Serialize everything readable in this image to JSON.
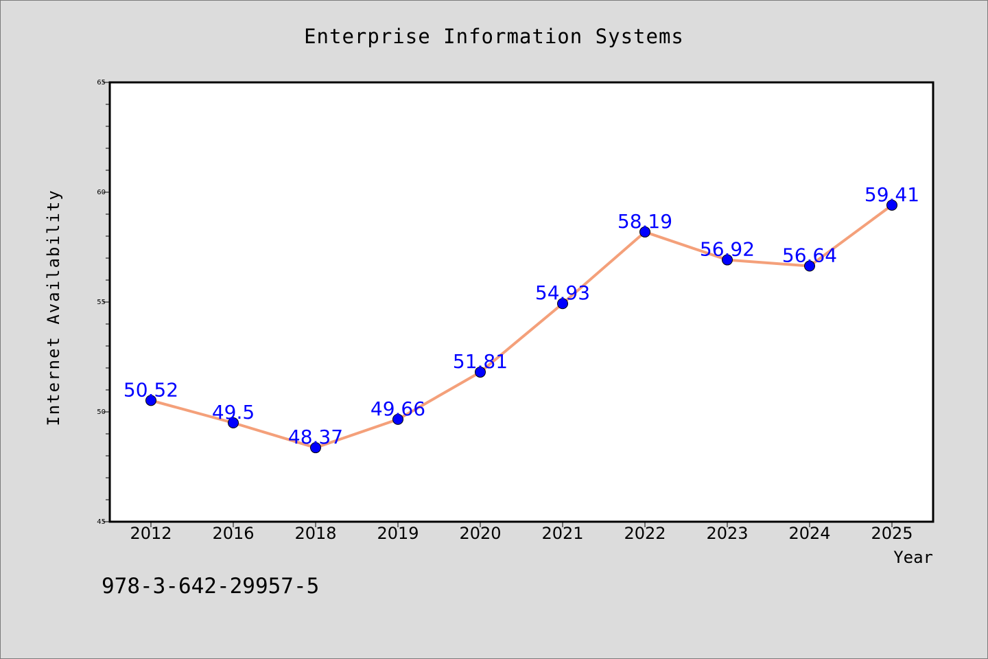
{
  "chart_data": {
    "type": "line",
    "title": "Enterprise Information Systems",
    "xlabel": "Year",
    "ylabel": "Internet Availability",
    "categories": [
      "2012",
      "2016",
      "2018",
      "2019",
      "2020",
      "2021",
      "2022",
      "2023",
      "2024",
      "2025"
    ],
    "values": [
      50.52,
      49.5,
      48.37,
      49.66,
      51.81,
      54.93,
      58.19,
      56.92,
      56.64,
      59.41
    ],
    "data_labels": [
      "50.52",
      "49.5",
      "48.37",
      "49.66",
      "51.81",
      "54.93",
      "58.19",
      "56.92",
      "56.64",
      "59.41"
    ],
    "ylim": [
      45,
      65
    ],
    "y_major_ticks": [
      45,
      50,
      55,
      60,
      65
    ],
    "y_tick_labels": [
      "45",
      "50",
      "55",
      "60",
      "65"
    ],
    "grid": false,
    "legend": "none",
    "colors": {
      "line": "#f4a07a",
      "marker": "#0000ff",
      "label": "#0000ff",
      "background": "#dcdcdc",
      "plot_background": "#ffffff"
    }
  },
  "footer_text": "978-3-642-29957-5"
}
